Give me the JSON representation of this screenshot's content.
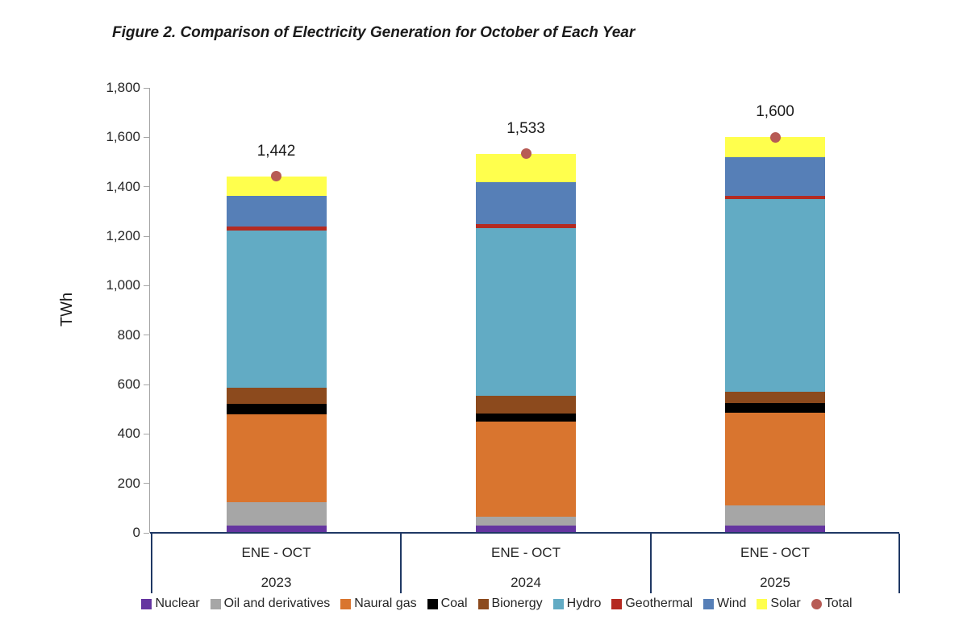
{
  "chart_data": {
    "type": "bar",
    "stacked": true,
    "title": "Figure 2. Comparison of Electricity Generation for October of Each Year",
    "ylabel": "TWh",
    "ylim": [
      0,
      1800
    ],
    "tick_step": 200,
    "grid": false,
    "legend_position": "bottom",
    "period_label": "ENE - OCT",
    "years": [
      "2023",
      "2024",
      "2025"
    ],
    "categories": [
      "ENE - OCT 2023",
      "ENE - OCT 2024",
      "ENE - OCT 2025"
    ],
    "series": [
      {
        "name": "Nuclear",
        "color": "#6535a0",
        "values": [
          30,
          30,
          30
        ]
      },
      {
        "name": "Oil and derivatives",
        "color": "#a6a6a6",
        "values": [
          93,
          35,
          82
        ]
      },
      {
        "name": "Naural gas",
        "color": "#d9752f",
        "values": [
          355,
          386,
          375
        ]
      },
      {
        "name": "Coal",
        "color": "#000000",
        "values": [
          45,
          33,
          38
        ]
      },
      {
        "name": "Bionergy",
        "color": "#8c4a1d",
        "values": [
          65,
          71,
          47
        ]
      },
      {
        "name": "Hydro",
        "color": "#62abc4",
        "values": [
          635,
          679,
          777
        ]
      },
      {
        "name": "Geothermal",
        "color": "#b42a22",
        "values": [
          16,
          16,
          15
        ]
      },
      {
        "name": "Wind",
        "color": "#567fb7",
        "values": [
          123,
          168,
          156
        ]
      },
      {
        "name": "Solar",
        "color": "#ffff4d",
        "values": [
          80,
          115,
          80
        ]
      }
    ],
    "totals": {
      "name": "Total",
      "color": "#b75b55",
      "values": [
        1442,
        1533,
        1600
      ],
      "labels": [
        "1,442",
        "1,533",
        "1,600"
      ]
    },
    "colors": {
      "axis_box": "#1f3864",
      "axis_line": "#a6a6a6",
      "tick_text": "#262626"
    }
  }
}
